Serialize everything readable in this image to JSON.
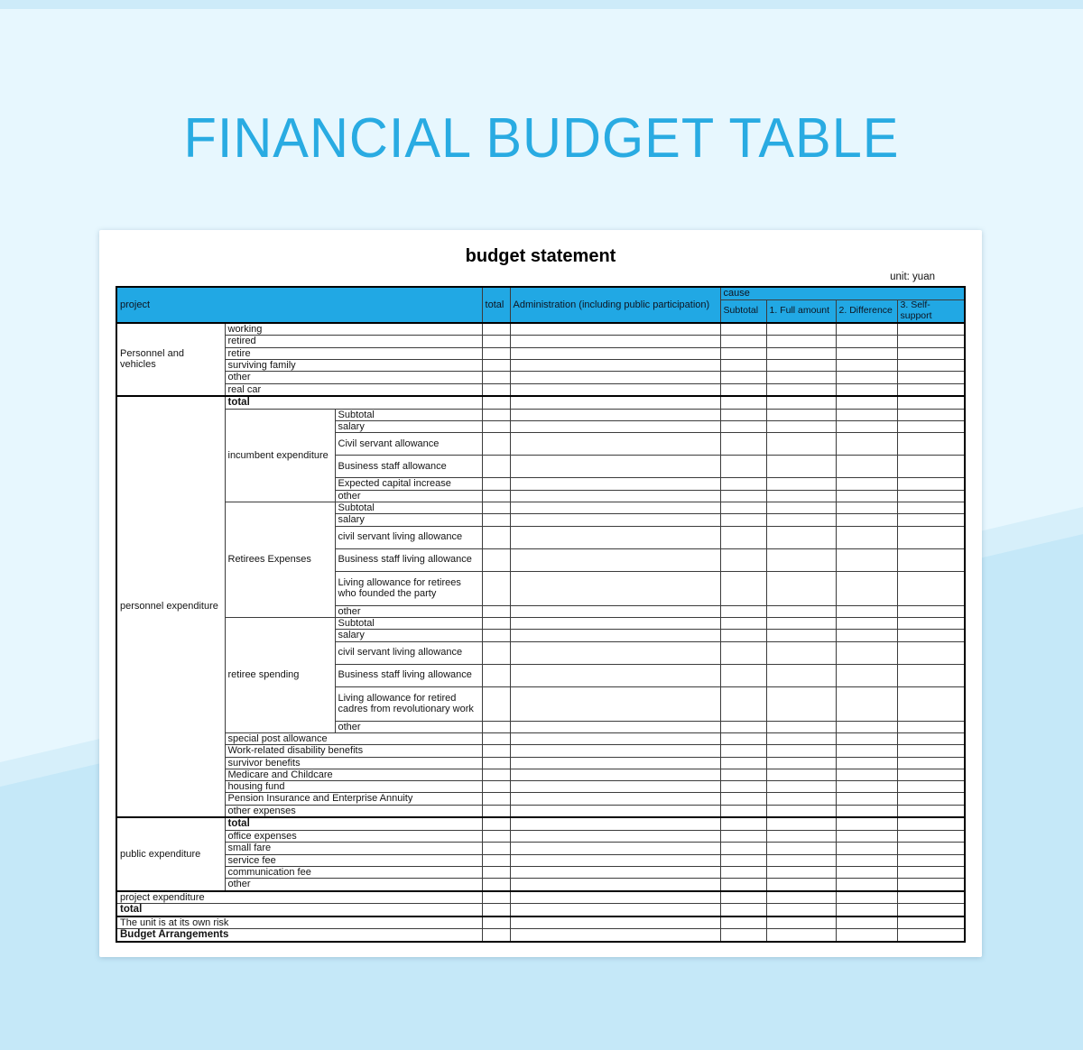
{
  "page": {
    "title": "FINANCIAL BUDGET TABLE",
    "accent_color": "#29abe2",
    "bg_top_color": "#e7f7fe",
    "bg_bottom_color": "#c5e8f8"
  },
  "card": {
    "table_title": "budget statement",
    "unit_label": "unit: yuan",
    "header": {
      "project": "project",
      "total": "total",
      "admin": "Administration (including public participation)",
      "cause": "cause",
      "cause_cols": [
        "Subtotal",
        "1. Full amount",
        "2. Difference",
        "3. Self-support"
      ],
      "fill_color": "#21a8e4"
    },
    "rows": [
      {
        "tt": true,
        "cells": [
          {
            "t": "Personnel and vehicles",
            "rs": 6
          },
          {
            "t": "working",
            "cs": 2,
            "center": true
          }
        ]
      },
      {
        "cells": [
          {
            "t": "retired",
            "cs": 2,
            "center": true
          }
        ]
      },
      {
        "cells": [
          {
            "t": "retire",
            "cs": 2,
            "center": true
          }
        ]
      },
      {
        "cells": [
          {
            "t": "surviving family",
            "cs": 2,
            "center": true
          }
        ]
      },
      {
        "cells": [
          {
            "t": "other",
            "cs": 2,
            "center": true
          }
        ]
      },
      {
        "cells": [
          {
            "t": "real car",
            "cs": 2,
            "center": true
          }
        ]
      },
      {
        "tt": true,
        "cells": [
          {
            "t": "personnel expenditure",
            "rs": 26
          },
          {
            "t": "total",
            "cs": 2,
            "center": true,
            "bold": true
          }
        ]
      },
      {
        "cells": [
          {
            "t": "incumbent expenditure",
            "rs": 6
          },
          {
            "t": "Subtotal"
          }
        ]
      },
      {
        "cells": [
          {
            "t": "salary"
          }
        ]
      },
      {
        "h": 2,
        "cells": [
          {
            "t": "Civil servant allowance"
          }
        ]
      },
      {
        "h": 2,
        "cells": [
          {
            "t": "Business staff allowance"
          }
        ]
      },
      {
        "cells": [
          {
            "t": "Expected capital increase"
          }
        ]
      },
      {
        "cells": [
          {
            "t": "other"
          }
        ]
      },
      {
        "cells": [
          {
            "t": "Retirees Expenses",
            "rs": 6
          },
          {
            "t": "Subtotal"
          }
        ]
      },
      {
        "cells": [
          {
            "t": "salary"
          }
        ]
      },
      {
        "h": 2,
        "cells": [
          {
            "t": "civil servant living allowance"
          }
        ]
      },
      {
        "h": 2,
        "cells": [
          {
            "t": "Business staff living allowance"
          }
        ]
      },
      {
        "h": 3,
        "cells": [
          {
            "t": "Living allowance for retirees who founded the party"
          }
        ]
      },
      {
        "cells": [
          {
            "t": "other"
          }
        ]
      },
      {
        "cells": [
          {
            "t": "retiree spending",
            "rs": 6
          },
          {
            "t": "Subtotal"
          }
        ]
      },
      {
        "cells": [
          {
            "t": "salary"
          }
        ]
      },
      {
        "h": 2,
        "cells": [
          {
            "t": "civil servant living allowance"
          }
        ]
      },
      {
        "h": 2,
        "cells": [
          {
            "t": "Business staff living allowance"
          }
        ]
      },
      {
        "h": 3,
        "cells": [
          {
            "t": "Living allowance for retired cadres from revolutionary work"
          }
        ]
      },
      {
        "cells": [
          {
            "t": "other"
          }
        ]
      },
      {
        "cells": [
          {
            "t": "special post allowance",
            "cs": 2
          }
        ]
      },
      {
        "cells": [
          {
            "t": "Work-related disability benefits",
            "cs": 2
          }
        ]
      },
      {
        "cells": [
          {
            "t": "survivor benefits",
            "cs": 2
          }
        ]
      },
      {
        "cells": [
          {
            "t": "Medicare and Childcare",
            "cs": 2
          }
        ]
      },
      {
        "cells": [
          {
            "t": "housing fund",
            "cs": 2
          }
        ]
      },
      {
        "cells": [
          {
            "t": "Pension Insurance and Enterprise Annuity",
            "cs": 2
          }
        ]
      },
      {
        "cells": [
          {
            "t": "other expenses",
            "cs": 2
          }
        ]
      },
      {
        "tt": true,
        "cells": [
          {
            "t": "public expenditure",
            "rs": 6
          },
          {
            "t": "total",
            "cs": 2,
            "center": true,
            "bold": true
          }
        ]
      },
      {
        "cells": [
          {
            "t": "office expenses",
            "cs": 2
          }
        ]
      },
      {
        "cells": [
          {
            "t": "small fare",
            "cs": 2
          }
        ]
      },
      {
        "cells": [
          {
            "t": "service fee",
            "cs": 2
          }
        ]
      },
      {
        "cells": [
          {
            "t": "communication fee",
            "cs": 2
          }
        ]
      },
      {
        "cells": [
          {
            "t": "other",
            "cs": 2
          }
        ]
      },
      {
        "tt": true,
        "cells": [
          {
            "t": "project expenditure",
            "cs": 3,
            "center": true
          }
        ]
      },
      {
        "cells": [
          {
            "t": "total",
            "cs": 3,
            "center": true,
            "bold": true
          }
        ]
      },
      {
        "tt": true,
        "cells": [
          {
            "t": "The unit is at its own risk",
            "cs": 3,
            "center": true
          }
        ]
      },
      {
        "cells": [
          {
            "t": "Budget Arrangements",
            "cs": 3,
            "center": true,
            "bold": true
          }
        ]
      }
    ]
  }
}
